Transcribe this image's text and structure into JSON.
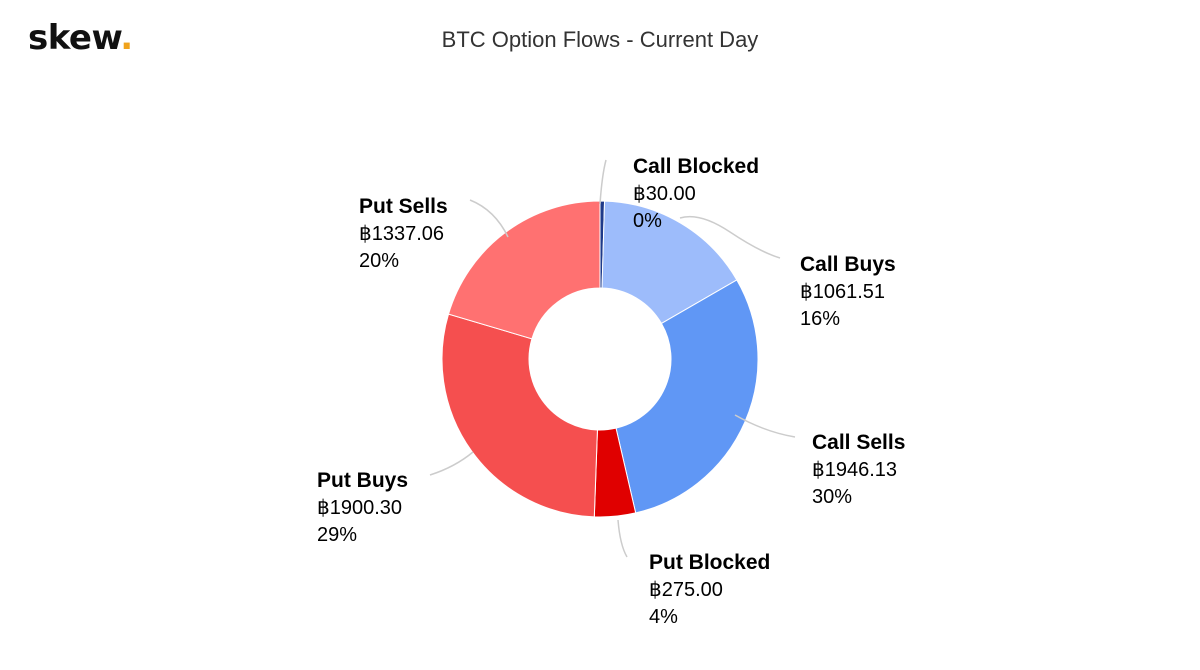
{
  "logo": {
    "text": "skew",
    "dot": "."
  },
  "chart_data": {
    "type": "pie",
    "title": "BTC Option Flows - Current Day",
    "donut": true,
    "currency_symbol": "฿",
    "slices": [
      {
        "name": "Call Blocked",
        "value": 30.0,
        "value_label": "฿30.00",
        "percent_label": "0%",
        "color": "#1e3a8a"
      },
      {
        "name": "Call Buys",
        "value": 1061.51,
        "value_label": "฿1061.51",
        "percent_label": "16%",
        "color": "#9dbcfb"
      },
      {
        "name": "Call Sells",
        "value": 1946.13,
        "value_label": "฿1946.13",
        "percent_label": "30%",
        "color": "#6097f5"
      },
      {
        "name": "Put Blocked",
        "value": 275.0,
        "value_label": "฿275.00",
        "percent_label": "4%",
        "color": "#e00000"
      },
      {
        "name": "Put Buys",
        "value": 1900.3,
        "value_label": "฿1900.30",
        "percent_label": "29%",
        "color": "#f54f4f"
      },
      {
        "name": "Put Sells",
        "value": 1337.06,
        "value_label": "฿1337.06",
        "percent_label": "20%",
        "color": "#ff7171"
      }
    ],
    "leader_color": "#cccccc"
  }
}
